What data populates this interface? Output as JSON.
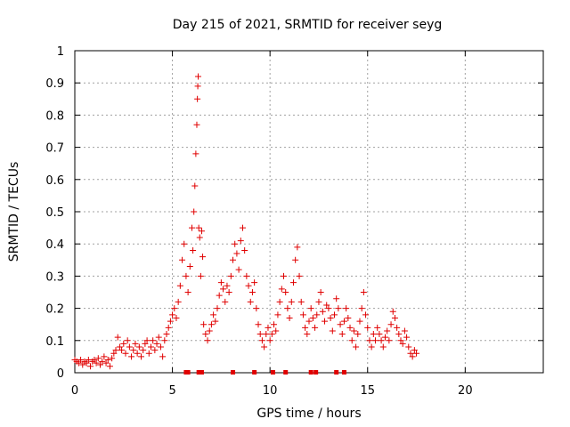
{
  "chart_data": {
    "type": "scatter",
    "title": "Day 215 of 2021, SRMTID for receiver seyg",
    "xlabel": "GPS time / hours",
    "ylabel": "SRMTID / TECUs",
    "xlim": [
      0,
      24
    ],
    "ylim": [
      0,
      1
    ],
    "xticks": [
      0,
      5,
      10,
      15,
      20
    ],
    "yticks": [
      0,
      0.1,
      0.2,
      0.3,
      0.4,
      0.5,
      0.6,
      0.7,
      0.8,
      0.9,
      1
    ],
    "xtick_labels": [
      "0",
      "5",
      "10",
      "15",
      "20"
    ],
    "ytick_labels": [
      "0",
      "0.1",
      "0.2",
      "0.3",
      "0.4",
      "0.5",
      "0.6",
      "0.7",
      "0.8",
      "0.9",
      "1"
    ],
    "grid": true,
    "marker": "+",
    "color": "#e00000",
    "series": [
      {
        "name": "SRMTID",
        "points": [
          [
            0.0,
            0.04
          ],
          [
            0.1,
            0.035
          ],
          [
            0.2,
            0.03
          ],
          [
            0.3,
            0.04
          ],
          [
            0.4,
            0.025
          ],
          [
            0.5,
            0.035
          ],
          [
            0.6,
            0.03
          ],
          [
            0.7,
            0.04
          ],
          [
            0.8,
            0.02
          ],
          [
            0.9,
            0.035
          ],
          [
            1.0,
            0.04
          ],
          [
            1.1,
            0.03
          ],
          [
            1.2,
            0.045
          ],
          [
            1.3,
            0.025
          ],
          [
            1.4,
            0.035
          ],
          [
            1.5,
            0.05
          ],
          [
            1.6,
            0.03
          ],
          [
            1.7,
            0.04
          ],
          [
            1.8,
            0.02
          ],
          [
            1.9,
            0.045
          ],
          [
            2.0,
            0.06
          ],
          [
            2.1,
            0.07
          ],
          [
            2.2,
            0.11
          ],
          [
            2.3,
            0.08
          ],
          [
            2.4,
            0.07
          ],
          [
            2.5,
            0.09
          ],
          [
            2.6,
            0.06
          ],
          [
            2.7,
            0.1
          ],
          [
            2.8,
            0.08
          ],
          [
            2.9,
            0.05
          ],
          [
            3.0,
            0.07
          ],
          [
            3.1,
            0.09
          ],
          [
            3.2,
            0.06
          ],
          [
            3.3,
            0.08
          ],
          [
            3.4,
            0.05
          ],
          [
            3.5,
            0.07
          ],
          [
            3.6,
            0.09
          ],
          [
            3.7,
            0.1
          ],
          [
            3.8,
            0.06
          ],
          [
            3.9,
            0.08
          ],
          [
            4.0,
            0.1
          ],
          [
            4.1,
            0.07
          ],
          [
            4.2,
            0.09
          ],
          [
            4.3,
            0.11
          ],
          [
            4.4,
            0.08
          ],
          [
            4.5,
            0.05
          ],
          [
            4.6,
            0.1
          ],
          [
            4.7,
            0.12
          ],
          [
            4.8,
            0.14
          ],
          [
            4.9,
            0.16
          ],
          [
            5.0,
            0.18
          ],
          [
            5.1,
            0.2
          ],
          [
            5.2,
            0.17
          ],
          [
            5.3,
            0.22
          ],
          [
            5.4,
            0.27
          ],
          [
            5.5,
            0.35
          ],
          [
            5.6,
            0.4
          ],
          [
            5.7,
            0.3
          ],
          [
            5.8,
            0.25
          ],
          [
            5.9,
            0.33
          ],
          [
            6.0,
            0.45
          ],
          [
            6.05,
            0.38
          ],
          [
            6.1,
            0.5
          ],
          [
            6.15,
            0.58
          ],
          [
            6.2,
            0.68
          ],
          [
            6.25,
            0.77
          ],
          [
            6.28,
            0.85
          ],
          [
            6.3,
            0.89
          ],
          [
            6.32,
            0.92
          ],
          [
            6.35,
            0.45
          ],
          [
            6.4,
            0.42
          ],
          [
            6.45,
            0.3
          ],
          [
            6.5,
            0.44
          ],
          [
            6.55,
            0.36
          ],
          [
            6.6,
            0.15
          ],
          [
            6.7,
            0.12
          ],
          [
            6.8,
            0.1
          ],
          [
            6.9,
            0.13
          ],
          [
            7.0,
            0.15
          ],
          [
            7.1,
            0.18
          ],
          [
            7.2,
            0.16
          ],
          [
            7.3,
            0.2
          ],
          [
            7.4,
            0.24
          ],
          [
            7.5,
            0.28
          ],
          [
            7.6,
            0.26
          ],
          [
            7.7,
            0.22
          ],
          [
            7.8,
            0.27
          ],
          [
            7.9,
            0.25
          ],
          [
            8.0,
            0.3
          ],
          [
            8.1,
            0.35
          ],
          [
            8.2,
            0.4
          ],
          [
            8.3,
            0.37
          ],
          [
            8.4,
            0.32
          ],
          [
            8.5,
            0.41
          ],
          [
            8.6,
            0.45
          ],
          [
            8.7,
            0.38
          ],
          [
            8.8,
            0.3
          ],
          [
            8.9,
            0.27
          ],
          [
            9.0,
            0.22
          ],
          [
            9.1,
            0.25
          ],
          [
            9.2,
            0.28
          ],
          [
            9.3,
            0.2
          ],
          [
            9.4,
            0.15
          ],
          [
            9.5,
            0.12
          ],
          [
            9.6,
            0.1
          ],
          [
            9.7,
            0.08
          ],
          [
            9.8,
            0.12
          ],
          [
            9.9,
            0.14
          ],
          [
            10.0,
            0.1
          ],
          [
            10.1,
            0.12
          ],
          [
            10.2,
            0.15
          ],
          [
            10.3,
            0.13
          ],
          [
            10.4,
            0.18
          ],
          [
            10.5,
            0.22
          ],
          [
            10.6,
            0.26
          ],
          [
            10.7,
            0.3
          ],
          [
            10.8,
            0.25
          ],
          [
            10.9,
            0.2
          ],
          [
            11.0,
            0.17
          ],
          [
            11.1,
            0.22
          ],
          [
            11.2,
            0.28
          ],
          [
            11.3,
            0.35
          ],
          [
            11.4,
            0.39
          ],
          [
            11.5,
            0.3
          ],
          [
            11.6,
            0.22
          ],
          [
            11.7,
            0.18
          ],
          [
            11.8,
            0.14
          ],
          [
            11.9,
            0.12
          ],
          [
            12.0,
            0.16
          ],
          [
            12.1,
            0.2
          ],
          [
            12.2,
            0.17
          ],
          [
            12.3,
            0.14
          ],
          [
            12.4,
            0.18
          ],
          [
            12.5,
            0.22
          ],
          [
            12.6,
            0.25
          ],
          [
            12.7,
            0.19
          ],
          [
            12.8,
            0.16
          ],
          [
            12.9,
            0.21
          ],
          [
            13.0,
            0.2
          ],
          [
            13.1,
            0.17
          ],
          [
            13.2,
            0.13
          ],
          [
            13.3,
            0.18
          ],
          [
            13.4,
            0.23
          ],
          [
            13.5,
            0.2
          ],
          [
            13.6,
            0.15
          ],
          [
            13.7,
            0.12
          ],
          [
            13.8,
            0.16
          ],
          [
            13.9,
            0.2
          ],
          [
            14.0,
            0.17
          ],
          [
            14.1,
            0.14
          ],
          [
            14.2,
            0.1
          ],
          [
            14.3,
            0.13
          ],
          [
            14.4,
            0.08
          ],
          [
            14.5,
            0.12
          ],
          [
            14.6,
            0.16
          ],
          [
            14.7,
            0.2
          ],
          [
            14.8,
            0.25
          ],
          [
            14.9,
            0.18
          ],
          [
            15.0,
            0.14
          ],
          [
            15.1,
            0.1
          ],
          [
            15.2,
            0.08
          ],
          [
            15.3,
            0.12
          ],
          [
            15.4,
            0.1
          ],
          [
            15.5,
            0.14
          ],
          [
            15.6,
            0.12
          ],
          [
            15.7,
            0.1
          ],
          [
            15.8,
            0.08
          ],
          [
            15.9,
            0.11
          ],
          [
            16.0,
            0.13
          ],
          [
            16.1,
            0.1
          ],
          [
            16.2,
            0.15
          ],
          [
            16.3,
            0.19
          ],
          [
            16.4,
            0.17
          ],
          [
            16.5,
            0.14
          ],
          [
            16.6,
            0.12
          ],
          [
            16.7,
            0.1
          ],
          [
            16.8,
            0.09
          ],
          [
            16.9,
            0.13
          ],
          [
            17.0,
            0.11
          ],
          [
            17.1,
            0.08
          ],
          [
            17.2,
            0.06
          ],
          [
            17.3,
            0.05
          ],
          [
            17.4,
            0.07
          ],
          [
            17.5,
            0.06
          ]
        ]
      }
    ],
    "slip_markers_x": [
      5.7,
      5.8,
      6.35,
      6.5,
      8.1,
      9.2,
      10.15,
      10.8,
      12.1,
      12.35,
      13.4,
      13.8
    ]
  }
}
